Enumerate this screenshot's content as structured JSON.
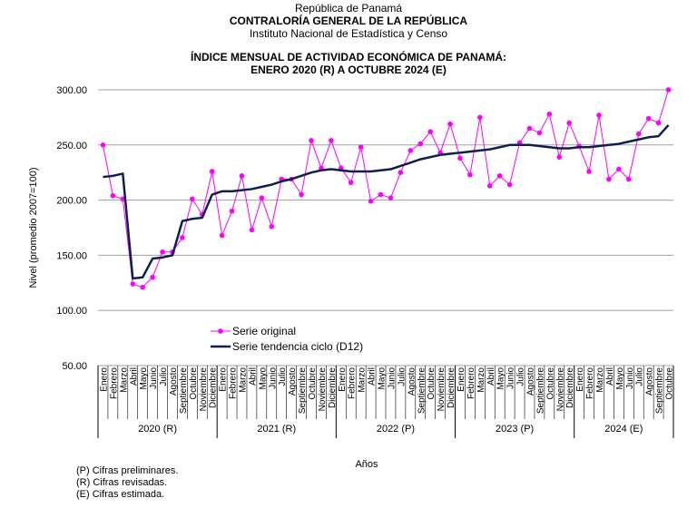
{
  "header": {
    "line1": "República de Panamá",
    "line2": "CONTRALORÍA GENERAL DE LA REPÚBLICA",
    "line3": "Instituto Nacional de Estadística y Censo"
  },
  "chart_data": {
    "type": "line",
    "title": "ÍNDICE MENSUAL DE ACTIVIDAD ECONÓMICA DE PANAMÁ:",
    "subtitle": "ENERO 2020 (R) A OCTUBRE 2024 (E)",
    "ylabel": "Nivel (promedio 2007=100)",
    "xlabel": "Años",
    "ylim": [
      50,
      300
    ],
    "yticks": [
      "50.00",
      "100.00",
      "150.00",
      "200.00",
      "250.00",
      "300.00"
    ],
    "grid": true,
    "legend_position": "lower-left inside plot",
    "months": [
      "Enero",
      "Febrero",
      "Marzo",
      "Abril",
      "Mayo",
      "Junio",
      "Julio",
      "Agosto",
      "Septiembre",
      "Octubre",
      "Noviembre",
      "Diciembre"
    ],
    "years": [
      {
        "label": "2020 (R)",
        "count": 12
      },
      {
        "label": "2021 (R)",
        "count": 12
      },
      {
        "label": "2022 (P)",
        "count": 12
      },
      {
        "label": "2023 (P)",
        "count": 12
      },
      {
        "label": "2024 (E)",
        "count": 10
      }
    ],
    "series": [
      {
        "name": "Serie original",
        "color": "#ff00ff",
        "marker": true,
        "values": [
          250,
          204,
          201,
          124,
          121,
          130,
          153,
          153,
          166,
          201,
          187,
          226,
          168,
          190,
          222,
          173,
          202,
          176,
          219,
          219,
          205,
          254,
          229,
          254,
          229,
          216,
          248,
          199,
          205,
          202,
          225,
          245,
          251,
          262,
          243,
          269,
          238,
          223,
          275,
          213,
          222,
          214,
          252,
          265,
          261,
          278,
          239,
          270,
          249,
          226,
          277,
          219,
          228,
          219,
          260,
          274,
          270,
          300
        ]
      },
      {
        "name": "Serie tendencia ciclo (D12)",
        "color": "#0d1f4f",
        "marker": false,
        "values": [
          221,
          222,
          224,
          129,
          130,
          147,
          148,
          150,
          181,
          183,
          184,
          205,
          208,
          208,
          209,
          210,
          212,
          214,
          217,
          219,
          222,
          225,
          227,
          228,
          227,
          226,
          226,
          226,
          227,
          228,
          231,
          234,
          237,
          239,
          241,
          242,
          243,
          244,
          245,
          246,
          248,
          250,
          250,
          250,
          249,
          248,
          247,
          247,
          248,
          248,
          249,
          250,
          251,
          253,
          255,
          257,
          258,
          268
        ]
      }
    ]
  },
  "notes": [
    "(P) Cifras preliminares.",
    "(R) Cifras revisadas.",
    "(E) Cifras estimada."
  ]
}
